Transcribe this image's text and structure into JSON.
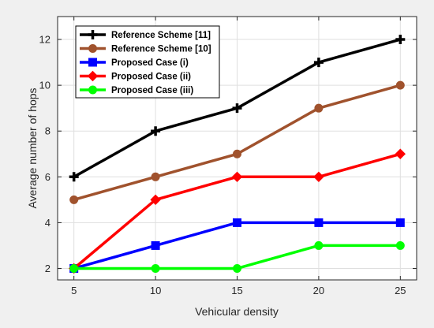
{
  "chart_data": {
    "type": "line",
    "xlabel": "Vehicular density",
    "ylabel": "Average number of hops",
    "x": [
      5,
      10,
      15,
      20,
      25
    ],
    "xlim": [
      4,
      26
    ],
    "ylim": [
      1.5,
      13
    ],
    "xticks": [
      5,
      10,
      15,
      20,
      25
    ],
    "yticks": [
      2,
      4,
      6,
      8,
      10,
      12
    ],
    "grid": true,
    "legend_position": "top-left",
    "series": [
      {
        "name": "Reference Scheme [11]",
        "values": [
          6,
          8,
          9,
          11,
          12
        ],
        "color": "#000000",
        "marker": "plus"
      },
      {
        "name": "Reference Scheme [10]",
        "values": [
          5,
          6,
          7,
          9,
          10
        ],
        "color": "#a0522d",
        "marker": "circle"
      },
      {
        "name": "Proposed Case (i)",
        "values": [
          2,
          3,
          4,
          4,
          4
        ],
        "color": "#0000ff",
        "marker": "square"
      },
      {
        "name": "Proposed Case (ii)",
        "values": [
          2,
          5,
          6,
          6,
          7
        ],
        "color": "#ff0000",
        "marker": "diamond"
      },
      {
        "name": "Proposed Case (iii)",
        "values": [
          2,
          2,
          2,
          3,
          3
        ],
        "color": "#00ff00",
        "marker": "circle"
      }
    ]
  }
}
